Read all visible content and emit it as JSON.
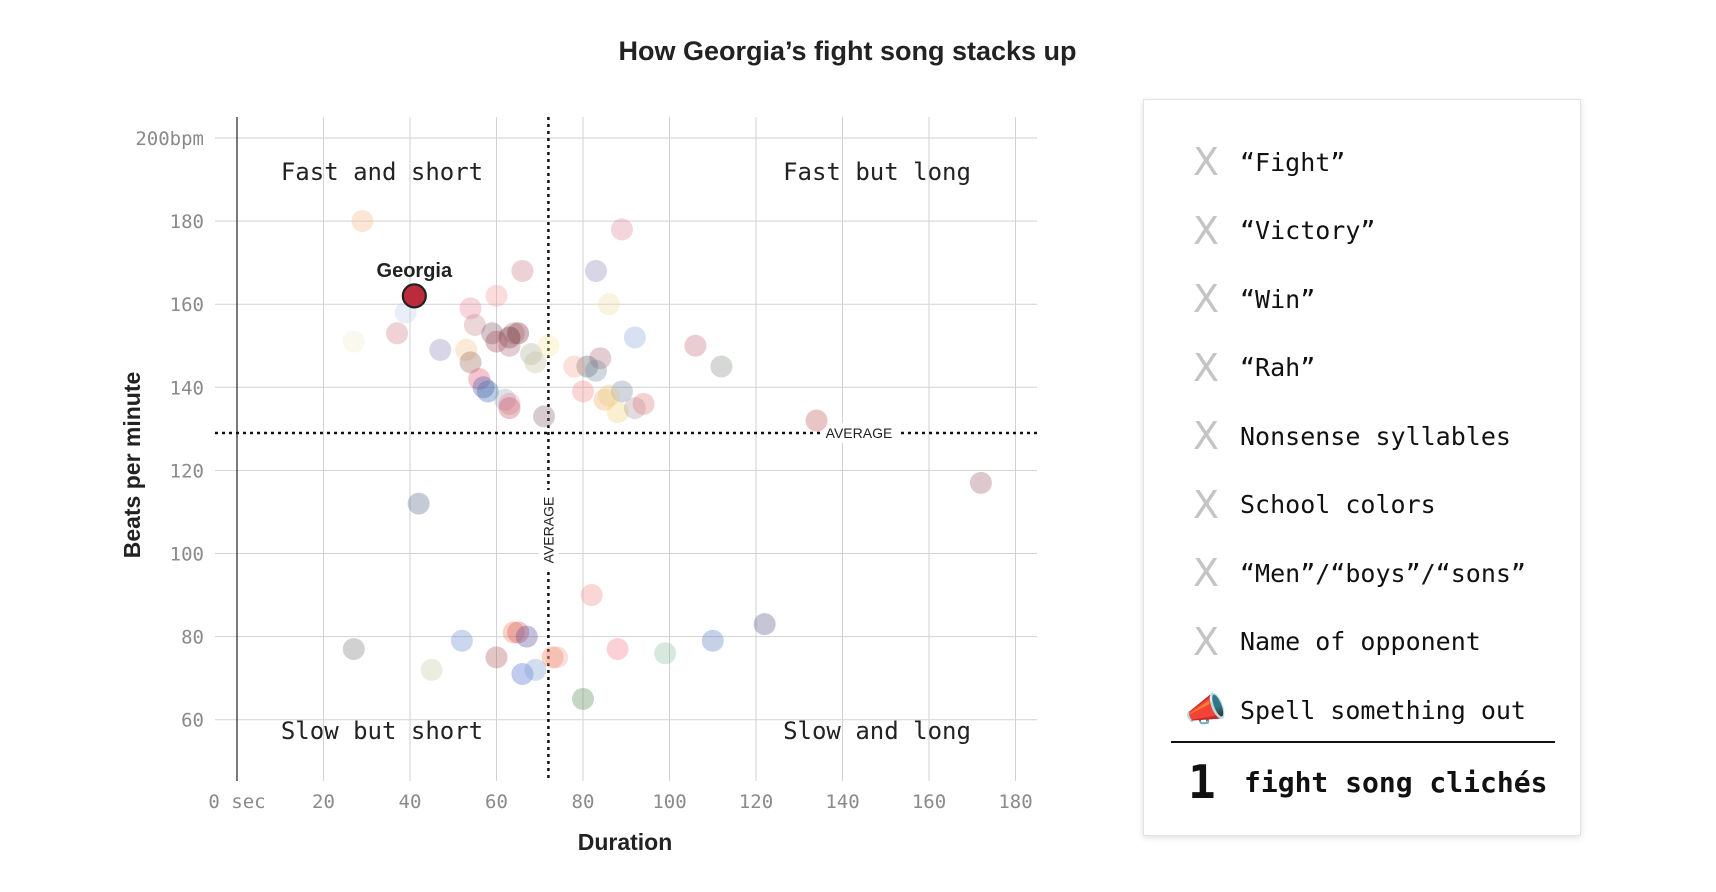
{
  "title": "How Georgia’s fight song stacks up",
  "chart_data": {
    "type": "scatter",
    "title": "How Georgia’s fight song stacks up",
    "xlabel": "Duration",
    "ylabel": "Beats per minute",
    "xlim": [
      0,
      185
    ],
    "ylim": [
      45,
      205
    ],
    "x_ticks": [
      "0 sec",
      "20",
      "40",
      "60",
      "80",
      "100",
      "120",
      "140",
      "160",
      "180"
    ],
    "x_tick_values": [
      0,
      20,
      40,
      60,
      80,
      100,
      120,
      140,
      160,
      180
    ],
    "y_ticks": [
      "200bpm",
      "180",
      "160",
      "140",
      "120",
      "100",
      "80",
      "60"
    ],
    "y_tick_values": [
      200,
      180,
      160,
      140,
      120,
      100,
      80,
      60
    ],
    "grid": true,
    "quadrants": {
      "top_left": "Fast and short",
      "top_right": "Fast but long",
      "bottom_left": "Slow but short",
      "bottom_right": "Slow and long"
    },
    "average": {
      "x": 72,
      "y": 129,
      "x_label": "AVERAGE",
      "y_label": "AVERAGE"
    },
    "highlight": {
      "name": "Georgia",
      "x": 41,
      "y": 162,
      "color": "#ba2c3b"
    },
    "points": [
      {
        "x": 29,
        "y": 180,
        "color": "#f6b88a"
      },
      {
        "x": 89,
        "y": 178,
        "color": "#d98a98"
      },
      {
        "x": 66,
        "y": 168,
        "color": "#c97d86"
      },
      {
        "x": 83,
        "y": 168,
        "color": "#8c86b8"
      },
      {
        "x": 60,
        "y": 162,
        "color": "#f29a9a"
      },
      {
        "x": 54,
        "y": 159,
        "color": "#e58a9b"
      },
      {
        "x": 86,
        "y": 160,
        "color": "#eee0a3"
      },
      {
        "x": 39,
        "y": 158,
        "color": "#bfd1ee"
      },
      {
        "x": 37,
        "y": 153,
        "color": "#cf7f8a"
      },
      {
        "x": 55,
        "y": 155,
        "color": "#c68a8e"
      },
      {
        "x": 64,
        "y": 153,
        "color": "#c08a6d"
      },
      {
        "x": 65,
        "y": 153,
        "color": "#7e2a40"
      },
      {
        "x": 59,
        "y": 153,
        "color": "#8a5a6a"
      },
      {
        "x": 63,
        "y": 152,
        "color": "#5b2a3a"
      },
      {
        "x": 60,
        "y": 151,
        "color": "#a34a5a"
      },
      {
        "x": 63,
        "y": 150,
        "color": "#b0707e"
      },
      {
        "x": 27,
        "y": 151,
        "color": "#f1ead0"
      },
      {
        "x": 47,
        "y": 149,
        "color": "#8c86b8"
      },
      {
        "x": 53,
        "y": 149,
        "color": "#f0c48c"
      },
      {
        "x": 68,
        "y": 148,
        "color": "#a8b09a"
      },
      {
        "x": 72,
        "y": 150,
        "color": "#f7e7a0"
      },
      {
        "x": 69,
        "y": 146,
        "color": "#c4c09a"
      },
      {
        "x": 54,
        "y": 146,
        "color": "#9a6a5a"
      },
      {
        "x": 92,
        "y": 152,
        "color": "#8fa8d6"
      },
      {
        "x": 106,
        "y": 150,
        "color": "#c4707e"
      },
      {
        "x": 84,
        "y": 147,
        "color": "#b07080"
      },
      {
        "x": 81,
        "y": 145,
        "color": "#5a6070"
      },
      {
        "x": 83,
        "y": 144,
        "color": "#7a8ca0"
      },
      {
        "x": 78,
        "y": 145,
        "color": "#f0a896"
      },
      {
        "x": 112,
        "y": 145,
        "color": "#8a8f8a"
      },
      {
        "x": 56,
        "y": 142,
        "color": "#e05a78"
      },
      {
        "x": 57,
        "y": 140,
        "color": "#4a5ca8"
      },
      {
        "x": 58,
        "y": 139,
        "color": "#3a6ab0"
      },
      {
        "x": 62,
        "y": 137,
        "color": "#9aa8b8"
      },
      {
        "x": 63,
        "y": 136,
        "color": "#f08aa0"
      },
      {
        "x": 63,
        "y": 135,
        "color": "#c05a6a"
      },
      {
        "x": 80,
        "y": 139,
        "color": "#f08a8a"
      },
      {
        "x": 89,
        "y": 139,
        "color": "#7a8ca8"
      },
      {
        "x": 85,
        "y": 137,
        "color": "#f0b060"
      },
      {
        "x": 86,
        "y": 138,
        "color": "#e8c880"
      },
      {
        "x": 88,
        "y": 134,
        "color": "#f3d27a"
      },
      {
        "x": 92,
        "y": 135,
        "color": "#b09aa0"
      },
      {
        "x": 94,
        "y": 136,
        "color": "#e07a7a"
      },
      {
        "x": 71,
        "y": 133,
        "color": "#8a6a7a"
      },
      {
        "x": 134,
        "y": 132,
        "color": "#c05a5a"
      },
      {
        "x": 172,
        "y": 117,
        "color": "#9a6070"
      },
      {
        "x": 42,
        "y": 112,
        "color": "#5a6a8a"
      },
      {
        "x": 82,
        "y": 90,
        "color": "#f08a8a"
      },
      {
        "x": 27,
        "y": 77,
        "color": "#7a7a7a"
      },
      {
        "x": 52,
        "y": 79,
        "color": "#6a8ad0"
      },
      {
        "x": 45,
        "y": 72,
        "color": "#c8c8a8"
      },
      {
        "x": 60,
        "y": 75,
        "color": "#b05a5a"
      },
      {
        "x": 64,
        "y": 81,
        "color": "#f07a5a"
      },
      {
        "x": 65,
        "y": 81,
        "color": "#d05a5a"
      },
      {
        "x": 67,
        "y": 80,
        "color": "#5a4a9a"
      },
      {
        "x": 66,
        "y": 71,
        "color": "#4a6ad0"
      },
      {
        "x": 69,
        "y": 72,
        "color": "#7aa0d0"
      },
      {
        "x": 73,
        "y": 75,
        "color": "#f07a4a"
      },
      {
        "x": 74,
        "y": 75,
        "color": "#f0a0a0"
      },
      {
        "x": 80,
        "y": 65,
        "color": "#5a8a5a"
      },
      {
        "x": 88,
        "y": 77,
        "color": "#f07a8a"
      },
      {
        "x": 99,
        "y": 76,
        "color": "#8ac09a"
      },
      {
        "x": 110,
        "y": 79,
        "color": "#5a7ac0"
      },
      {
        "x": 122,
        "y": 83,
        "color": "#5a5a8a"
      }
    ]
  },
  "checklist": {
    "items": [
      {
        "icon": "x-icon",
        "mark": "X",
        "label": "“Fight”"
      },
      {
        "icon": "x-icon",
        "mark": "X",
        "label": "“Victory”"
      },
      {
        "icon": "x-icon",
        "mark": "X",
        "label": "“Win”"
      },
      {
        "icon": "x-icon",
        "mark": "X",
        "label": "“Rah”"
      },
      {
        "icon": "x-icon",
        "mark": "X",
        "label": "Nonsense syllables"
      },
      {
        "icon": "x-icon",
        "mark": "X",
        "label": "School colors"
      },
      {
        "icon": "x-icon",
        "mark": "X",
        "label": "“Men”/“boys”/“sons”"
      },
      {
        "icon": "x-icon",
        "mark": "X",
        "label": "Name of opponent"
      },
      {
        "icon": "megaphone-icon",
        "mark": "📣",
        "label": "Spell something out"
      }
    ],
    "total_count": "1",
    "total_label": "fight song clichés"
  }
}
